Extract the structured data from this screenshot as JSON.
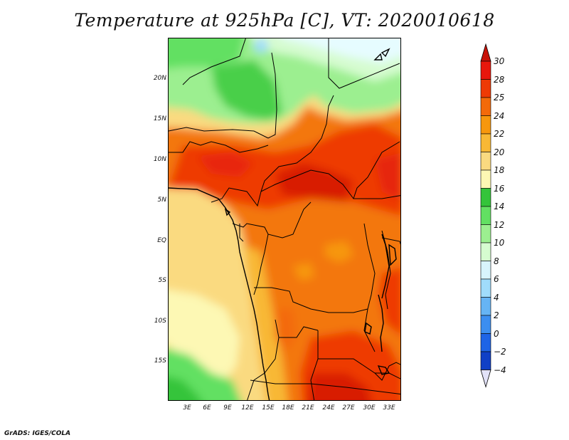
{
  "title": "Temperature at 925hPa [C], VT: 2020010618",
  "credit": "GrADS: IGES/COLA",
  "map": {
    "lat_labels": [
      "20N",
      "15N",
      "10N",
      "5N",
      "EQ",
      "5S",
      "10S",
      "15S"
    ],
    "lon_labels": [
      "3E",
      "6E",
      "9E",
      "12E",
      "15E",
      "18E",
      "21E",
      "24E",
      "27E",
      "30E",
      "33E"
    ]
  },
  "colorbar": {
    "labels": [
      "30",
      "28",
      "25",
      "24",
      "22",
      "20",
      "18",
      "16",
      "14",
      "12",
      "10",
      "8",
      "6",
      "4",
      "2",
      "0",
      "−2",
      "−4"
    ],
    "colors": [
      "#e8170c",
      "#ee3a05",
      "#f36a0a",
      "#f7970d",
      "#f8b835",
      "#fada80",
      "#fdf8b4",
      "#34c43a",
      "#62e062",
      "#9cef90",
      "#d6fcd0",
      "#d8f4fc",
      "#a0dcfb",
      "#66b4f4",
      "#3c8ef0",
      "#1e64e6",
      "#1040c6",
      "#001a7e"
    ],
    "top_arrow_color": "#c81208",
    "bottom_arrow_color": "#e2e2f8"
  }
}
